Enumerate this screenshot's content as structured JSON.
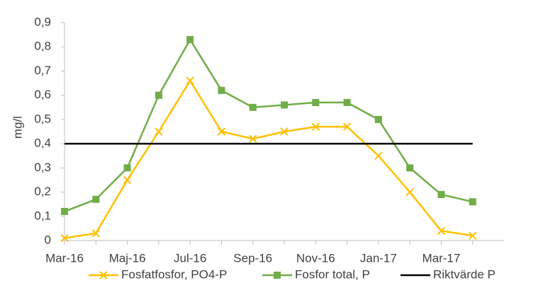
{
  "chart_data": {
    "type": "line",
    "y_label": "mg/l",
    "categories": [
      "Mar-16",
      null,
      "Maj-16",
      null,
      "Jul-16",
      null,
      "Sep-16",
      null,
      "Nov-16",
      null,
      "Jan-17",
      null,
      "Mar-17",
      null
    ],
    "series": [
      {
        "name": "Fosfatfosfor, PO4-P",
        "color": "#ffc000",
        "marker": "x",
        "values": [
          0.01,
          0.03,
          0.25,
          0.45,
          0.66,
          0.45,
          0.42,
          0.45,
          0.47,
          0.47,
          0.35,
          0.2,
          0.04,
          0.02
        ]
      },
      {
        "name": "Fosfor total, P",
        "color": "#70ad47",
        "marker": "square",
        "values": [
          0.12,
          0.17,
          0.3,
          0.6,
          0.83,
          0.62,
          0.55,
          0.56,
          0.57,
          0.57,
          0.5,
          0.3,
          0.19,
          0.16
        ]
      },
      {
        "name": "Riktvärde P",
        "color": "#000000",
        "marker": "none",
        "values": [
          0.4,
          0.4,
          0.4,
          0.4,
          0.4,
          0.4,
          0.4,
          0.4,
          0.4,
          0.4,
          0.4,
          0.4,
          0.4,
          0.4
        ]
      }
    ],
    "ylim": [
      0,
      0.9
    ],
    "yticks": [
      0,
      {
        "value": 0.1,
        "label": "0,1"
      },
      {
        "value": 0.2,
        "label": "0,2"
      },
      {
        "value": 0.3,
        "label": "0,3"
      },
      {
        "value": 0.4,
        "label": "0,4"
      },
      {
        "value": 0.5,
        "label": "0,5"
      },
      {
        "value": 0.6,
        "label": "0,6"
      },
      {
        "value": 0.7,
        "label": "0,7"
      },
      {
        "value": 0.8,
        "label": "0,8"
      },
      {
        "value": 0.9,
        "label": "0,9"
      }
    ],
    "legend": "bottom"
  }
}
